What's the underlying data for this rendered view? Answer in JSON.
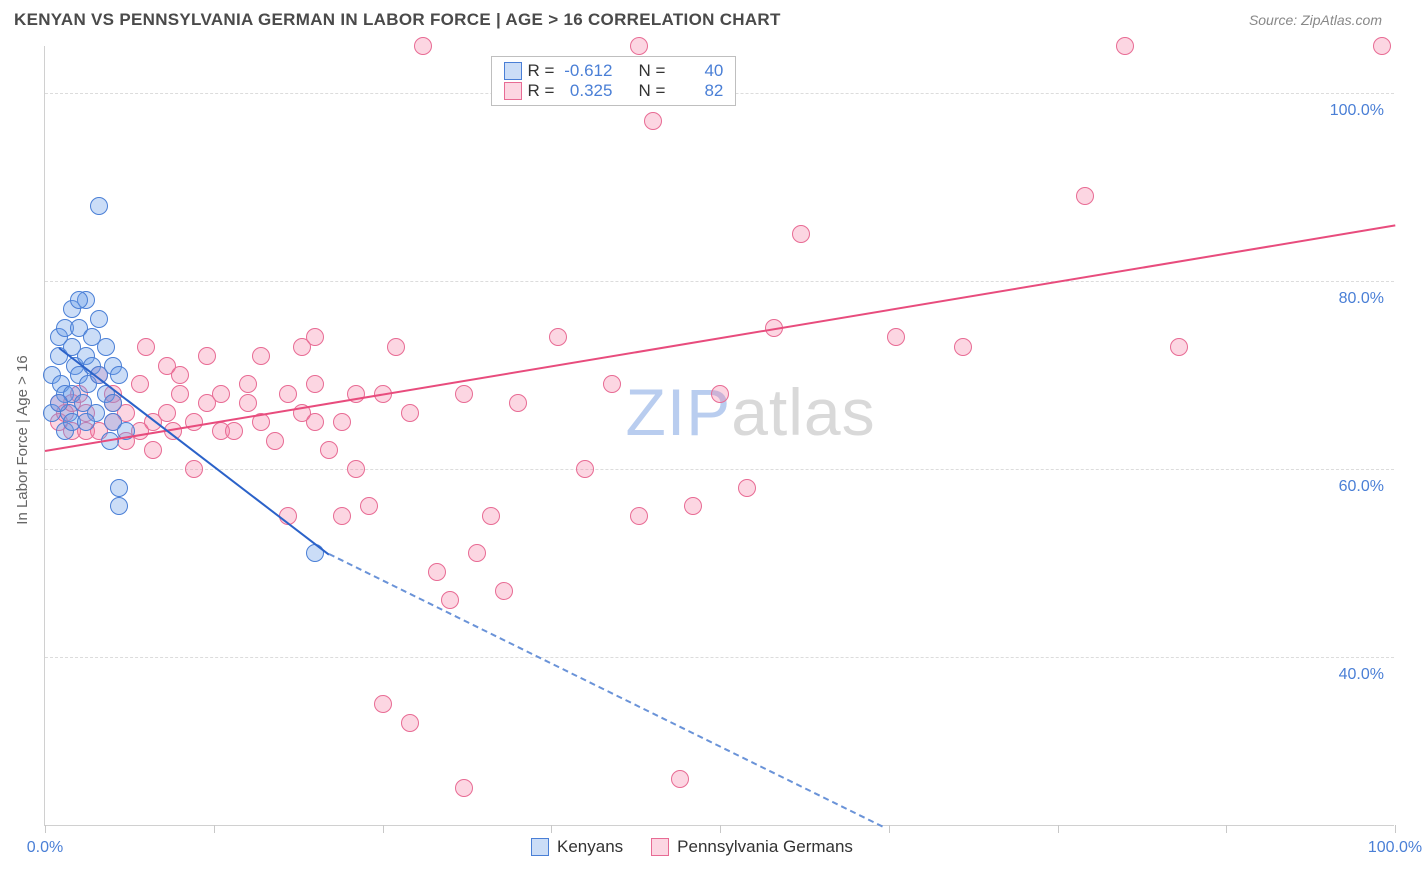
{
  "header": {
    "title": "KENYAN VS PENNSYLVANIA GERMAN IN LABOR FORCE | AGE > 16 CORRELATION CHART",
    "source": "Source: ZipAtlas.com"
  },
  "axes": {
    "y_label": "In Labor Force | Age > 16",
    "y_ticks": [
      {
        "v": 40,
        "label": "40.0%"
      },
      {
        "v": 60,
        "label": "60.0%"
      },
      {
        "v": 80,
        "label": "80.0%"
      },
      {
        "v": 100,
        "label": "100.0%"
      }
    ],
    "x_ticks": [
      0,
      12.5,
      25,
      37.5,
      50,
      62.5,
      75,
      87.5,
      100
    ],
    "x_min_label": "0.0%",
    "x_max_label": "100.0%",
    "xlim": [
      0,
      100
    ],
    "ylim": [
      22,
      105
    ]
  },
  "chart": {
    "type": "scatter",
    "background_color": "#ffffff",
    "grid_color": "#dcdcdc",
    "marker_radius": 9,
    "marker_border_width": 1.5,
    "watermark_text": "ZIPatlas",
    "watermark_colors": [
      "#b9cdef",
      "#d9d9d9"
    ]
  },
  "series": [
    {
      "name": "Kenyans",
      "fill": "rgba(107,159,233,0.35)",
      "stroke": "#4a7fd6",
      "R": "-0.612",
      "N": "40",
      "trend": {
        "x1": 1,
        "y1": 73,
        "x2": 21,
        "y2": 51,
        "color": "#2b62c9"
      },
      "trend_dash": {
        "x1": 21,
        "y1": 51,
        "x2": 62,
        "y2": 22,
        "color": "#6a93d8"
      },
      "points": [
        [
          0.5,
          70
        ],
        [
          0.5,
          66
        ],
        [
          1,
          72
        ],
        [
          1,
          74
        ],
        [
          1.2,
          69
        ],
        [
          1.5,
          68
        ],
        [
          1.5,
          75
        ],
        [
          1.8,
          66
        ],
        [
          2,
          68
        ],
        [
          2,
          73
        ],
        [
          2,
          77
        ],
        [
          2.2,
          71
        ],
        [
          2.5,
          70
        ],
        [
          2.5,
          75
        ],
        [
          2.8,
          67
        ],
        [
          3,
          72
        ],
        [
          3,
          78
        ],
        [
          3.2,
          69
        ],
        [
          3.5,
          71
        ],
        [
          3.5,
          74
        ],
        [
          3.8,
          66
        ],
        [
          4,
          70
        ],
        [
          4,
          76
        ],
        [
          4,
          88
        ],
        [
          4.5,
          68
        ],
        [
          4.5,
          73
        ],
        [
          5,
          65
        ],
        [
          5,
          71
        ],
        [
          5,
          67
        ],
        [
          5.5,
          58
        ],
        [
          5.5,
          56
        ],
        [
          5.5,
          70
        ],
        [
          6,
          64
        ],
        [
          1.5,
          64
        ],
        [
          2,
          65
        ],
        [
          3,
          65
        ],
        [
          4.8,
          63
        ],
        [
          1,
          67
        ],
        [
          2.5,
          78
        ],
        [
          20,
          51
        ]
      ]
    },
    {
      "name": "Pennsylvania Germans",
      "fill": "rgba(244,120,160,0.30)",
      "stroke": "#e86b94",
      "R": "0.325",
      "N": "82",
      "trend": {
        "x1": 0,
        "y1": 62,
        "x2": 100,
        "y2": 86,
        "color": "#e84c7d"
      },
      "points": [
        [
          1,
          67
        ],
        [
          1,
          65
        ],
        [
          1.5,
          66
        ],
        [
          2,
          67
        ],
        [
          2,
          64
        ],
        [
          2.5,
          68
        ],
        [
          3,
          66
        ],
        [
          3,
          64
        ],
        [
          4,
          64
        ],
        [
          4,
          70
        ],
        [
          5,
          65
        ],
        [
          5,
          68
        ],
        [
          5,
          67
        ],
        [
          6,
          63
        ],
        [
          6,
          66
        ],
        [
          7,
          64
        ],
        [
          7,
          69
        ],
        [
          7.5,
          73
        ],
        [
          8,
          65
        ],
        [
          8,
          62
        ],
        [
          9,
          66
        ],
        [
          9,
          71
        ],
        [
          9.5,
          64
        ],
        [
          10,
          68
        ],
        [
          10,
          70
        ],
        [
          11,
          65
        ],
        [
          11,
          60
        ],
        [
          12,
          67
        ],
        [
          12,
          72
        ],
        [
          13,
          64
        ],
        [
          13,
          68
        ],
        [
          14,
          64
        ],
        [
          15,
          67
        ],
        [
          15,
          69
        ],
        [
          16,
          65
        ],
        [
          16,
          72
        ],
        [
          17,
          63
        ],
        [
          18,
          68
        ],
        [
          18,
          55
        ],
        [
          19,
          66
        ],
        [
          19,
          73
        ],
        [
          20,
          65
        ],
        [
          20,
          69
        ],
        [
          20,
          74
        ],
        [
          21,
          62
        ],
        [
          22,
          55
        ],
        [
          22,
          65
        ],
        [
          23,
          68
        ],
        [
          23,
          60
        ],
        [
          24,
          56
        ],
        [
          25,
          68
        ],
        [
          25,
          35
        ],
        [
          26,
          73
        ],
        [
          27,
          66
        ],
        [
          27,
          33
        ],
        [
          28,
          105
        ],
        [
          29,
          49
        ],
        [
          30,
          46
        ],
        [
          31,
          68
        ],
        [
          31,
          26
        ],
        [
          32,
          51
        ],
        [
          33,
          55
        ],
        [
          34,
          47
        ],
        [
          35,
          67
        ],
        [
          38,
          74
        ],
        [
          40,
          60
        ],
        [
          42,
          69
        ],
        [
          44,
          55
        ],
        [
          44,
          105
        ],
        [
          45,
          97
        ],
        [
          47,
          27
        ],
        [
          48,
          56
        ],
        [
          50,
          68
        ],
        [
          52,
          58
        ],
        [
          54,
          75
        ],
        [
          56,
          85
        ],
        [
          63,
          74
        ],
        [
          68,
          73
        ],
        [
          77,
          89
        ],
        [
          80,
          105
        ],
        [
          84,
          73
        ],
        [
          99,
          105
        ]
      ]
    }
  ],
  "legend_bottom": {
    "items": [
      "Kenyans",
      "Pennsylvania Germans"
    ]
  },
  "stats_box": {
    "R_label": "R =",
    "N_label": "N ="
  }
}
